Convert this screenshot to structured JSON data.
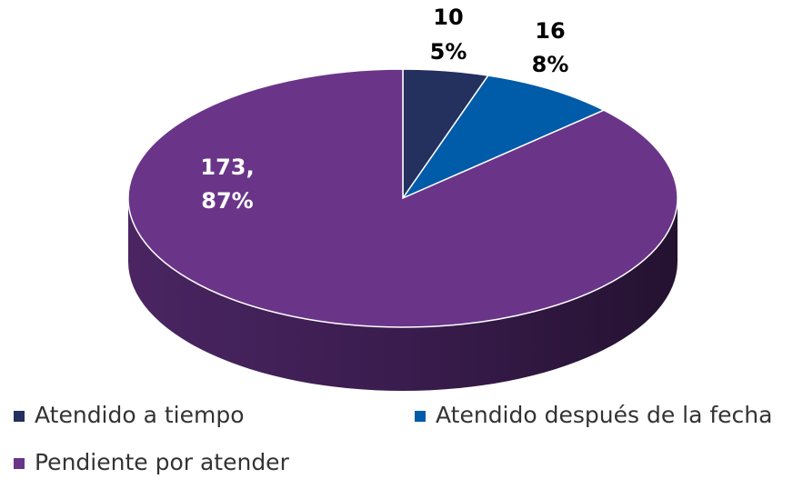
{
  "chart_data": {
    "type": "pie3d",
    "categories": [
      "Atendido a tiempo",
      "Atendido después de la fecha",
      "Pendiente por atender"
    ],
    "values": [
      10,
      16,
      173
    ],
    "value_labels": [
      "10",
      "16",
      "173,"
    ],
    "percent_labels": [
      "5%",
      "8%",
      "87%"
    ],
    "colors": [
      "#24305e",
      "#005ba8",
      "#6a3589"
    ]
  }
}
